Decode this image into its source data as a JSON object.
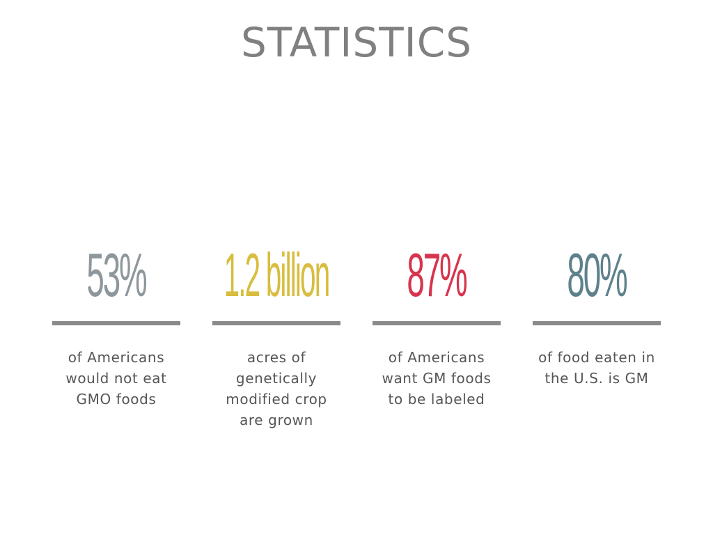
{
  "title": "STATISTICS",
  "stats": [
    {
      "value": "53%",
      "color": "#8e979c",
      "lines": [
        "of Americans",
        "would not eat",
        "GMO foods"
      ]
    },
    {
      "value": "1.2 billion",
      "color": "#d8bd3f",
      "lines": [
        "acres of",
        "genetically",
        "modified crop",
        "are grown"
      ]
    },
    {
      "value": "87%",
      "color": "#d7344d",
      "lines": [
        "of Americans",
        "want GM foods",
        "to be labeled"
      ]
    },
    {
      "value": "80%",
      "color": "#5e818b",
      "lines": [
        "of food eaten in",
        "the U.S. is GM"
      ]
    }
  ],
  "colors": {
    "title": "#808080",
    "rule": "#8a8a8a",
    "description": "#555555",
    "background": "#ffffff"
  }
}
